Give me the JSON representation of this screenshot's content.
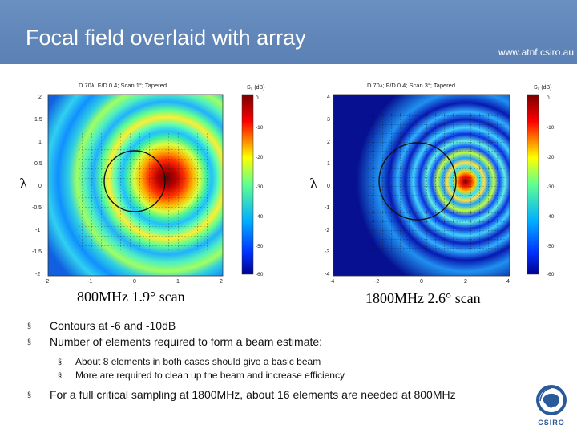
{
  "header": {
    "title": "Focal field overlaid with array",
    "url": "www.atnf.csiro.au"
  },
  "panels": [
    {
      "plot_title": "D 70λ; F/D 0.4; Scan 1°; Tapered",
      "colorbar_label": "S₂ (dB)",
      "colorbar_ticks": [
        "0",
        "-10",
        "-20",
        "-30",
        "-40",
        "-50",
        "-60"
      ],
      "y_ticks": [
        "2",
        "1.5",
        "1",
        "0.5",
        "0",
        "-0.5",
        "-1",
        "-1.5",
        "-2"
      ],
      "x_ticks": [
        "-2",
        "-1",
        "0",
        "1",
        "2"
      ],
      "ylabel": "λ",
      "caption": "800MHz 1.9° scan"
    },
    {
      "plot_title": "D 70λ; F/D 0.4; Scan 3°; Tapered",
      "colorbar_label": "S₂ (dB)",
      "colorbar_ticks": [
        "0",
        "-10",
        "-20",
        "-30",
        "-40",
        "-50",
        "-60"
      ],
      "y_ticks": [
        "4",
        "3",
        "2",
        "1",
        "0",
        "-1",
        "-2",
        "-3",
        "-4"
      ],
      "x_ticks": [
        "-4",
        "-2",
        "0",
        "2",
        "4"
      ],
      "ylabel": "λ",
      "caption": "1800MHz 2.6° scan"
    }
  ],
  "bullets": [
    {
      "text": "Contours at -6 and -10dB",
      "sub": []
    },
    {
      "text": "Number of elements required to form a beam estimate:",
      "sub": [
        "About 8 elements in both cases should give a basic beam",
        "More are required to clean up the beam and increase efficiency"
      ]
    },
    {
      "text": "For a full critical sampling at 1800MHz, about 16 elements are needed at 800MHz",
      "sub": []
    }
  ],
  "logo": {
    "text": "CSIRO"
  },
  "bullet_marker": "§",
  "colors": {
    "header": "#5f86ba",
    "plot_bg": "#0a1a9a"
  }
}
